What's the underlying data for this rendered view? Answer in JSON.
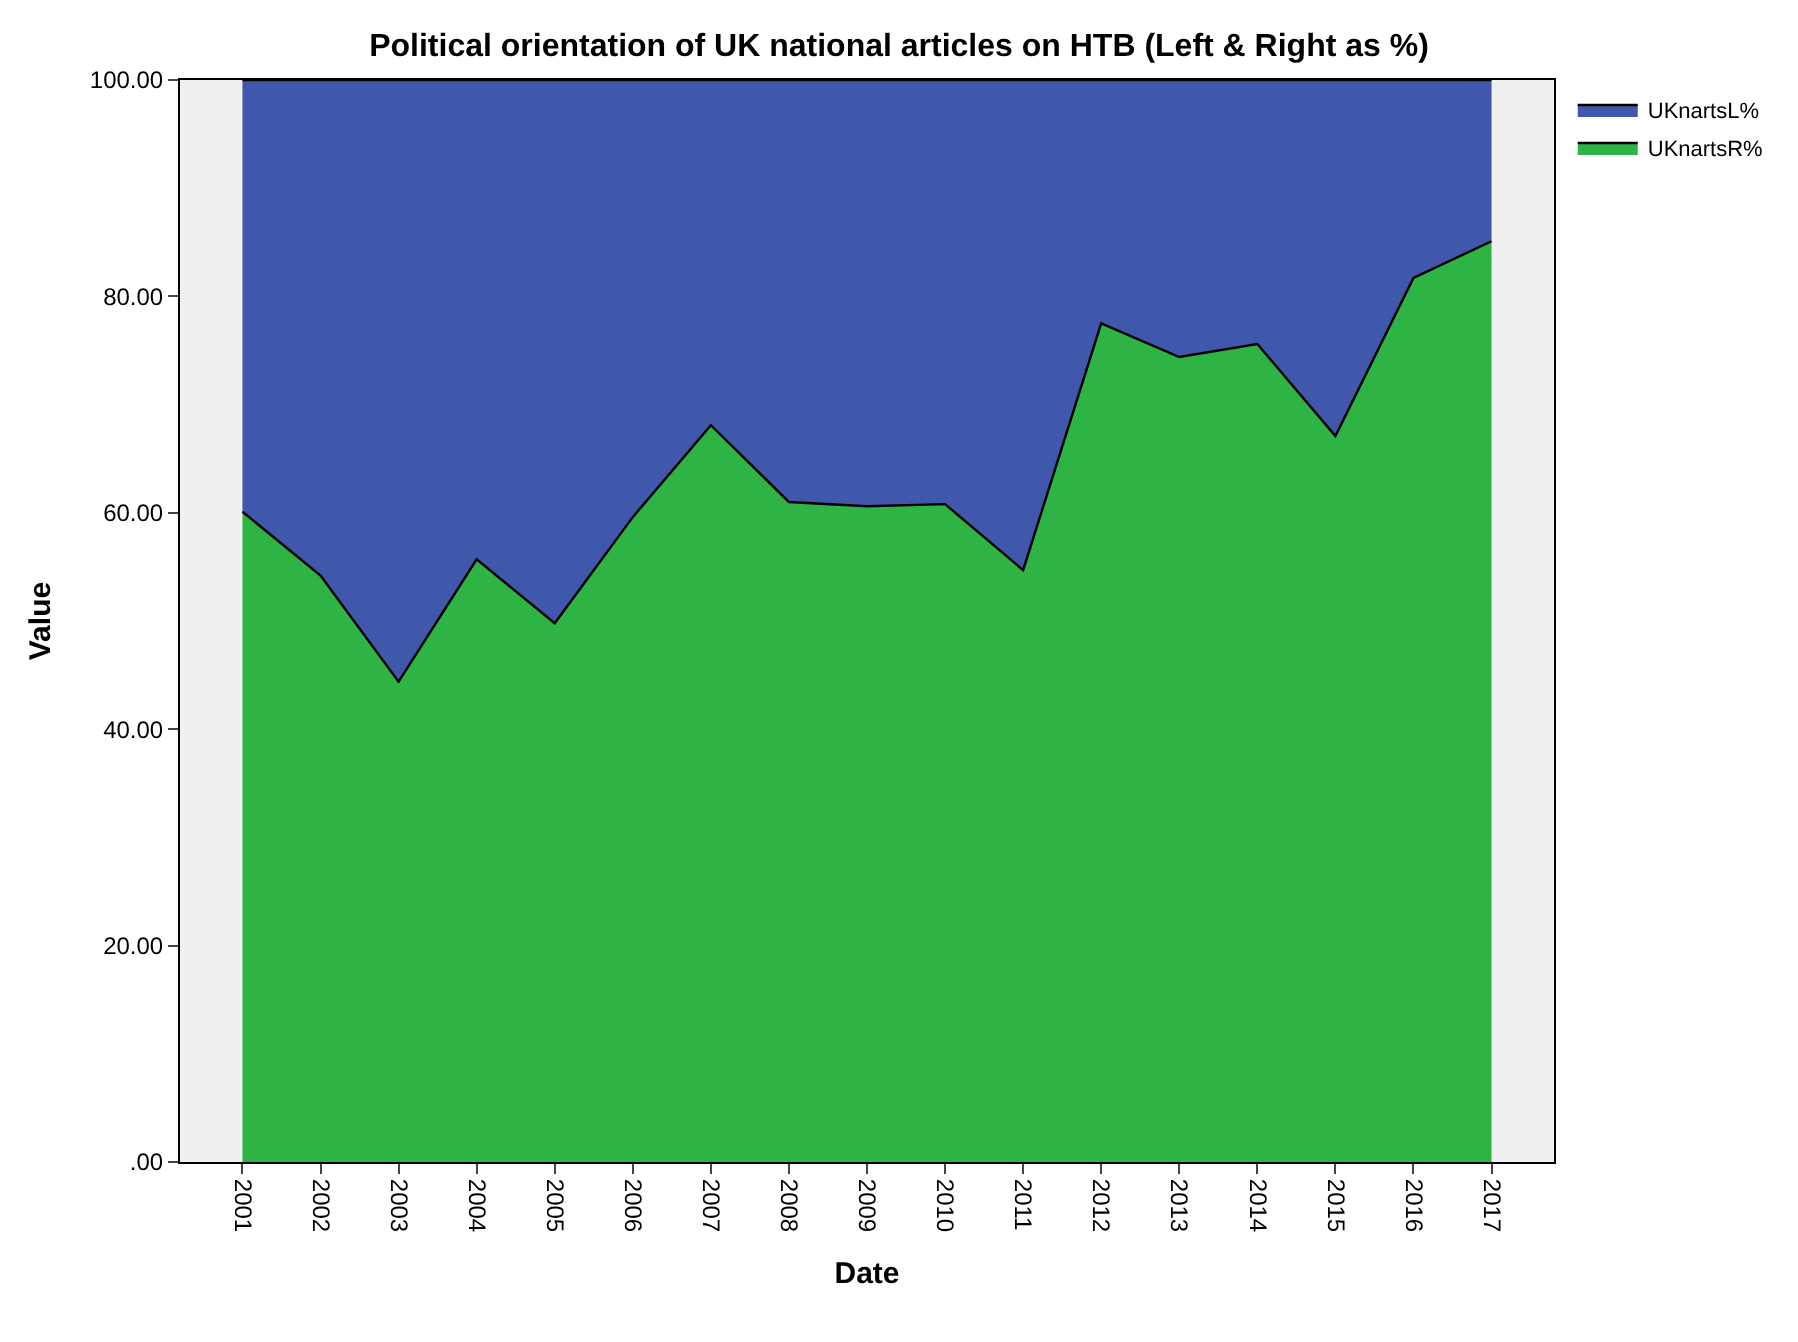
{
  "chart_data": {
    "type": "area",
    "stacked": true,
    "title": "Political orientation of UK national articles on HTB (Left & Right as %)",
    "xlabel": "Date",
    "ylabel": "Value",
    "categories": [
      "2001",
      "2002",
      "2003",
      "2004",
      "2005",
      "2006",
      "2007",
      "2008",
      "2009",
      "2010",
      "2011",
      "2012",
      "2013",
      "2014",
      "2015",
      "2016",
      "2017"
    ],
    "series": [
      {
        "name": "UKnartsR%",
        "color": "#2db445",
        "values": [
          60.1,
          54.2,
          44.4,
          55.7,
          49.8,
          59.6,
          68.1,
          61.0,
          60.6,
          60.8,
          54.7,
          77.5,
          74.4,
          75.6,
          67.1,
          81.7,
          85.1
        ]
      },
      {
        "name": "UKnartsL%",
        "color": "#3f58ab",
        "values": [
          39.9,
          45.8,
          55.6,
          44.3,
          50.2,
          40.4,
          31.9,
          39.0,
          39.4,
          39.2,
          45.3,
          22.5,
          25.6,
          24.4,
          32.9,
          18.3,
          14.9
        ]
      }
    ],
    "ylim": [
      0,
      100
    ],
    "yticks": [
      {
        "value": 0,
        "label": ".00"
      },
      {
        "value": 20,
        "label": "20.00"
      },
      {
        "value": 40,
        "label": "40.00"
      },
      {
        "value": 60,
        "label": "60.00"
      },
      {
        "value": 80,
        "label": "80.00"
      },
      {
        "value": 100,
        "label": "100.00"
      }
    ],
    "legend": "top right",
    "grid": false
  }
}
